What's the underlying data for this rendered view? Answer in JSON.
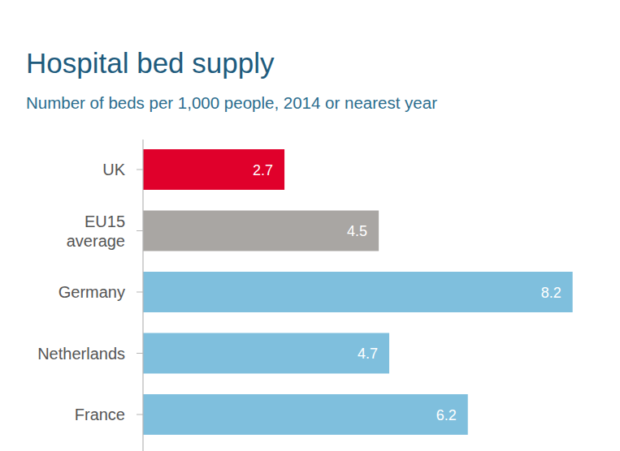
{
  "chart_data": {
    "type": "bar",
    "orientation": "horizontal",
    "title": "Hospital bed supply",
    "subtitle": "Number of beds per 1,000 people, 2014 or nearest year",
    "categories": [
      "UK",
      "EU15 average",
      "Germany",
      "Netherlands",
      "France"
    ],
    "values": [
      2.7,
      4.5,
      8.2,
      4.7,
      6.2
    ],
    "colors": [
      "#e0002b",
      "#a9a6a3",
      "#7fbfdd",
      "#7fbfdd",
      "#7fbfdd"
    ],
    "xlim": [
      0,
      8.5
    ],
    "data_labels": true,
    "tick_labels": "y",
    "grid": false
  }
}
